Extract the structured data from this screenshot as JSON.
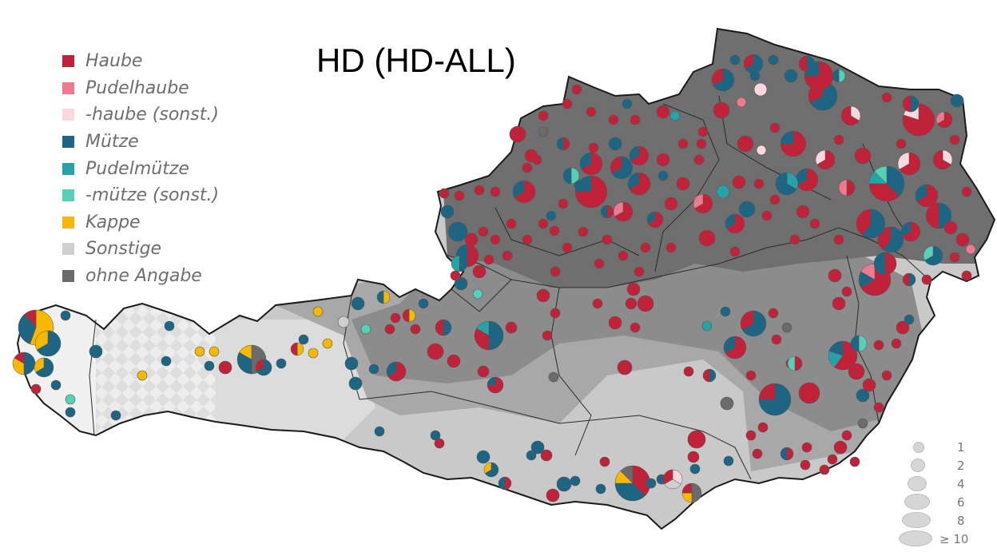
{
  "title": "HD (HD-ALL)",
  "legend": {
    "items": [
      {
        "label": "Haube",
        "color": "#c0223a"
      },
      {
        "label": "Pudelhaube",
        "color": "#ee7a90"
      },
      {
        "label": "-haube (sonst.)",
        "color": "#fbd7df"
      },
      {
        "label": "Mütze",
        "color": "#1d6582"
      },
      {
        "label": "Pudelmütze",
        "color": "#27a3a8"
      },
      {
        "label": "-mütze (sonst.)",
        "color": "#57d1b6"
      },
      {
        "label": "Kappe",
        "color": "#f6b800"
      },
      {
        "label": "Sonstige",
        "color": "#cfcfcf"
      },
      {
        "label": "ohne Angabe",
        "color": "#6b6b6b"
      }
    ]
  },
  "size_legend": {
    "labels": [
      "1",
      "2",
      "4",
      "6",
      "8",
      "≥ 10"
    ]
  },
  "map": {
    "region": "Austria",
    "zone_colors": {
      "dark": "#6e6e6e",
      "medium_dark": "#8e8e8e",
      "medium": "#a9a9a9",
      "light": "#c8c8c8",
      "lighter": "#dcdcdc",
      "checkered": "#efefef"
    }
  }
}
